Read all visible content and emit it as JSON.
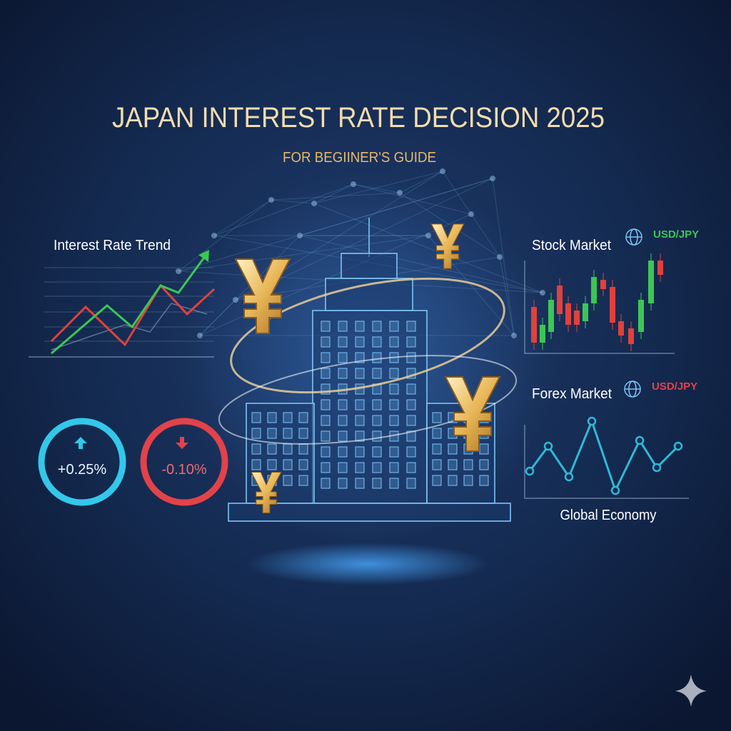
{
  "header": {
    "title": "JAPAN INTEREST RATE DECISION 2025",
    "subtitle": "FOR BEGIINER'S GUIDE"
  },
  "panels": {
    "interest_rate_trend": {
      "title": "Interest Rate Trend"
    },
    "stock_market": {
      "title": "Stock Market",
      "pair": "USD/JPY"
    },
    "forex_market": {
      "title": "Forex Market",
      "pair": "USD/JPY",
      "caption": "Global Economy"
    }
  },
  "indicators": [
    {
      "label": "+0.25%"
    },
    {
      "label": "-0.10%"
    }
  ]
}
